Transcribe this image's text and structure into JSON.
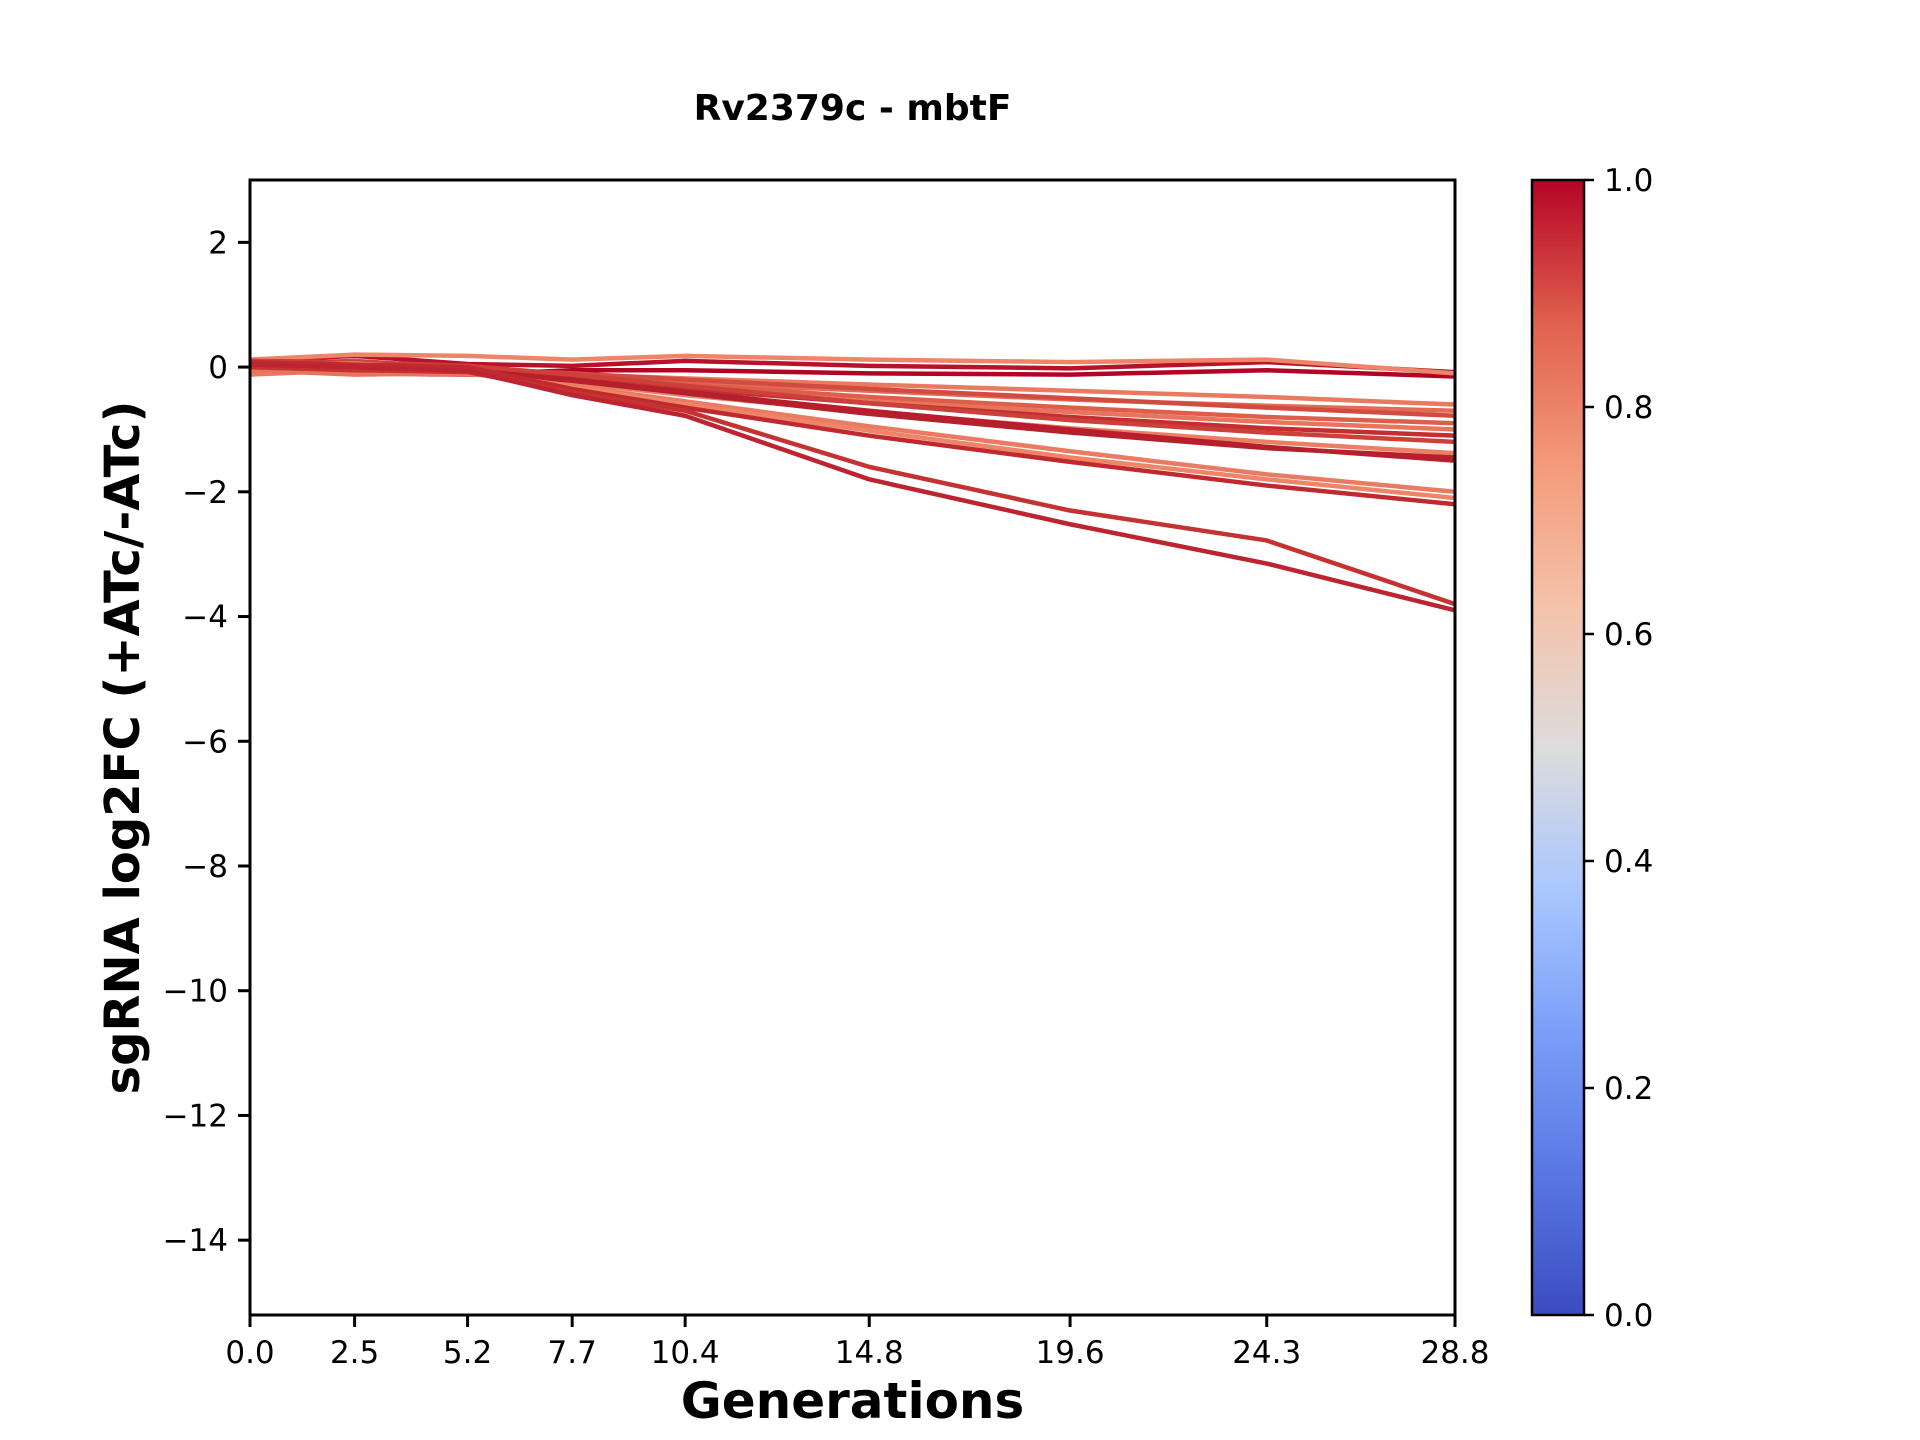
{
  "chart_data": {
    "type": "line",
    "title": "Rv2379c - mbtF",
    "xlabel": "Generations",
    "ylabel": "sgRNA log2FC (+ATc/-ATc)",
    "x": [
      0.0,
      2.5,
      5.2,
      7.7,
      10.4,
      14.8,
      19.6,
      24.3,
      28.8
    ],
    "xlim": [
      0.0,
      28.8
    ],
    "ylim": [
      -15.2,
      3.0
    ],
    "grid": false,
    "legend": "none",
    "xticks": {
      "values": [
        0.0,
        2.5,
        5.2,
        7.7,
        10.4,
        14.8,
        19.6,
        24.3,
        28.8
      ],
      "labels": [
        "0.0",
        "2.5",
        "5.2",
        "7.7",
        "10.4",
        "14.8",
        "19.6",
        "24.3",
        "28.8"
      ]
    },
    "yticks": {
      "values": [
        2,
        0,
        -2,
        -4,
        -6,
        -8,
        -10,
        -12,
        -14
      ],
      "labels": [
        "2",
        "0",
        "−2",
        "−4",
        "−6",
        "−8",
        "−10",
        "−12",
        "−14"
      ]
    },
    "series": [
      {
        "color": "#b8122a",
        "cmap_value": 0.98,
        "values": [
          0.1,
          0.18,
          0.05,
          0.02,
          0.1,
          0.02,
          -0.02,
          0.08,
          -0.08
        ]
      },
      {
        "color": "#b40426",
        "cmap_value": 1.0,
        "values": [
          0.0,
          -0.1,
          -0.12,
          -0.05,
          -0.05,
          -0.1,
          -0.12,
          -0.05,
          -0.15
        ]
      },
      {
        "color": "#ee8468",
        "cmap_value": 0.78,
        "values": [
          0.12,
          0.2,
          0.18,
          0.12,
          0.18,
          0.12,
          0.08,
          0.12,
          -0.1
        ]
      },
      {
        "color": "#e97a5f",
        "cmap_value": 0.8,
        "values": [
          -0.12,
          -0.05,
          -0.1,
          -0.12,
          -0.18,
          -0.28,
          -0.38,
          -0.48,
          -0.6
        ]
      },
      {
        "color": "#e36b54",
        "cmap_value": 0.82,
        "values": [
          0.0,
          -0.08,
          -0.12,
          -0.15,
          -0.25,
          -0.38,
          -0.52,
          -0.62,
          -0.7
        ]
      },
      {
        "color": "#d24b40",
        "cmap_value": 0.88,
        "values": [
          0.05,
          0.1,
          -0.02,
          -0.1,
          -0.2,
          -0.35,
          -0.5,
          -0.65,
          -0.78
        ]
      },
      {
        "color": "#dd5f4b",
        "cmap_value": 0.85,
        "values": [
          0.0,
          0.02,
          -0.05,
          -0.15,
          -0.28,
          -0.48,
          -0.65,
          -0.8,
          -0.9
        ]
      },
      {
        "color": "#e8745c",
        "cmap_value": 0.81,
        "values": [
          -0.05,
          -0.12,
          -0.1,
          -0.2,
          -0.35,
          -0.55,
          -0.72,
          -0.88,
          -1.0
        ]
      },
      {
        "color": "#c32e31",
        "cmap_value": 0.93,
        "values": [
          0.0,
          0.05,
          -0.02,
          -0.15,
          -0.35,
          -0.58,
          -0.8,
          -0.98,
          -1.1
        ]
      },
      {
        "color": "#cc403a",
        "cmap_value": 0.9,
        "values": [
          0.1,
          0.08,
          0.02,
          -0.12,
          -0.3,
          -0.58,
          -0.85,
          -1.05,
          -1.2
        ]
      },
      {
        "color": "#ec7f63",
        "cmap_value": 0.79,
        "values": [
          0.0,
          -0.05,
          -0.1,
          -0.25,
          -0.45,
          -0.72,
          -0.98,
          -1.2,
          -1.38
        ]
      },
      {
        "color": "#bb1b2c",
        "cmap_value": 0.96,
        "values": [
          0.05,
          0.0,
          -0.05,
          -0.2,
          -0.4,
          -0.7,
          -1.0,
          -1.28,
          -1.5
        ]
      },
      {
        "color": "#b5202d",
        "cmap_value": 0.97,
        "values": [
          0.02,
          -0.02,
          -0.08,
          -0.22,
          -0.42,
          -0.75,
          -1.05,
          -1.3,
          -1.45
        ]
      },
      {
        "color": "#e97b62",
        "cmap_value": 0.8,
        "values": [
          0.0,
          0.02,
          -0.1,
          -0.3,
          -0.55,
          -0.95,
          -1.35,
          -1.72,
          -2.0
        ]
      },
      {
        "color": "#ee8468",
        "cmap_value": 0.78,
        "values": [
          0.02,
          0.06,
          -0.05,
          -0.32,
          -0.6,
          -1.02,
          -1.45,
          -1.8,
          -2.1
        ]
      },
      {
        "color": "#c02a2e",
        "cmap_value": 0.94,
        "values": [
          0.08,
          0.04,
          0.0,
          -0.35,
          -0.65,
          -1.1,
          -1.52,
          -1.9,
          -2.2
        ]
      },
      {
        "color": "#c43331",
        "cmap_value": 0.93,
        "values": [
          0.0,
          -0.05,
          -0.08,
          -0.4,
          -0.7,
          -1.6,
          -2.3,
          -2.78,
          -3.8
        ]
      },
      {
        "color": "#bd2330",
        "cmap_value": 0.96,
        "values": [
          0.04,
          0.0,
          -0.06,
          -0.45,
          -0.78,
          -1.8,
          -2.52,
          -3.15,
          -3.9
        ]
      }
    ],
    "colorbar": {
      "min": 0.0,
      "max": 1.0,
      "colormap": "coolwarm",
      "tick_values": [
        1.0,
        0.8,
        0.6,
        0.4,
        0.2,
        0.0
      ],
      "tick_labels": [
        "1.0",
        "0.8",
        "0.6",
        "0.4",
        "0.2",
        "0.0"
      ],
      "gradient_stops": [
        {
          "offset": 0.0,
          "color": "#3b4cc0"
        },
        {
          "offset": 0.125,
          "color": "#5977e3"
        },
        {
          "offset": 0.25,
          "color": "#7b9ff9"
        },
        {
          "offset": 0.375,
          "color": "#aac7fd"
        },
        {
          "offset": 0.5,
          "color": "#dddcdc"
        },
        {
          "offset": 0.625,
          "color": "#f4c2a9"
        },
        {
          "offset": 0.75,
          "color": "#f49a7b"
        },
        {
          "offset": 0.875,
          "color": "#e0604e"
        },
        {
          "offset": 1.0,
          "color": "#b40426"
        }
      ]
    }
  }
}
